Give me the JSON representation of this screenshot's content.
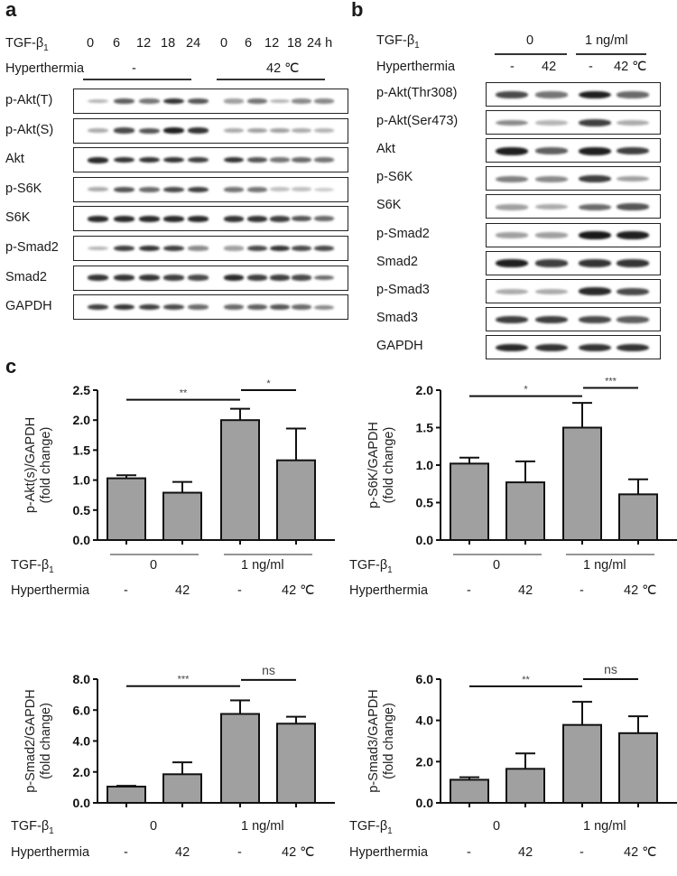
{
  "panel_a": {
    "letter": "a",
    "tgf_label": "TGF-β",
    "tgf_sub": "1",
    "timepoints_group1": [
      "0",
      "6",
      "12",
      "18",
      "24"
    ],
    "timepoints_group2": [
      "0",
      "6",
      "12",
      "18",
      "24 h"
    ],
    "hyperthermia_label": "Hyperthermia",
    "hyperthermia_group1": "-",
    "hyperthermia_group2": "42 ℃",
    "rows": [
      {
        "label": "p-Akt(T)",
        "g1": [
          0.25,
          0.65,
          0.55,
          0.85,
          0.7
        ],
        "g2": [
          0.35,
          0.55,
          0.25,
          0.45,
          0.45
        ]
      },
      {
        "label": "p-Akt(S)",
        "g1": [
          0.3,
          0.75,
          0.7,
          0.95,
          0.85
        ],
        "g2": [
          0.3,
          0.35,
          0.35,
          0.3,
          0.25
        ]
      },
      {
        "label": "Akt",
        "g1": [
          0.9,
          0.85,
          0.85,
          0.85,
          0.8
        ],
        "g2": [
          0.85,
          0.7,
          0.55,
          0.6,
          0.55
        ]
      },
      {
        "label": "p-S6K",
        "g1": [
          0.3,
          0.7,
          0.6,
          0.75,
          0.8
        ],
        "g2": [
          0.55,
          0.55,
          0.2,
          0.2,
          0.15
        ]
      },
      {
        "label": "S6K",
        "g1": [
          0.9,
          0.9,
          0.9,
          0.9,
          0.9
        ],
        "g2": [
          0.85,
          0.85,
          0.8,
          0.7,
          0.6
        ]
      },
      {
        "label": "p-Smad2",
        "g1": [
          0.25,
          0.8,
          0.85,
          0.8,
          0.45
        ],
        "g2": [
          0.35,
          0.75,
          0.85,
          0.75,
          0.75
        ]
      },
      {
        "label": "Smad2",
        "g1": [
          0.85,
          0.85,
          0.85,
          0.8,
          0.75
        ],
        "g2": [
          0.9,
          0.8,
          0.8,
          0.75,
          0.6
        ]
      },
      {
        "label": "GAPDH",
        "g1": [
          0.8,
          0.85,
          0.8,
          0.75,
          0.6
        ],
        "g2": [
          0.6,
          0.65,
          0.7,
          0.6,
          0.45
        ]
      }
    ]
  },
  "panel_b": {
    "letter": "b",
    "tgf_label": "TGF-β",
    "tgf_sub": "1",
    "tgf_groups": [
      "0",
      "1 ng/ml"
    ],
    "hyperthermia_label": "Hyperthermia",
    "hyperthermia_values": [
      "-",
      "42",
      "-",
      "42 ℃"
    ],
    "rows": [
      {
        "label": "p-Akt(Thr308)",
        "lanes": [
          0.75,
          0.55,
          0.95,
          0.6
        ]
      },
      {
        "label": "p-Akt(Ser473)",
        "lanes": [
          0.45,
          0.25,
          0.8,
          0.3
        ]
      },
      {
        "label": "Akt",
        "lanes": [
          0.95,
          0.65,
          0.95,
          0.8
        ]
      },
      {
        "label": "p-S6K",
        "lanes": [
          0.5,
          0.45,
          0.8,
          0.35
        ]
      },
      {
        "label": "S6K",
        "lanes": [
          0.35,
          0.3,
          0.6,
          0.7
        ]
      },
      {
        "label": "p-Smad2",
        "lanes": [
          0.35,
          0.35,
          0.98,
          0.95
        ]
      },
      {
        "label": "Smad2",
        "lanes": [
          0.95,
          0.8,
          0.85,
          0.85
        ]
      },
      {
        "label": "p-Smad3",
        "lanes": [
          0.3,
          0.3,
          0.9,
          0.75
        ]
      },
      {
        "label": "Smad3",
        "lanes": [
          0.8,
          0.8,
          0.75,
          0.65
        ]
      },
      {
        "label": "GAPDH",
        "lanes": [
          0.9,
          0.85,
          0.85,
          0.85
        ]
      }
    ]
  },
  "panel_c": {
    "letter": "c",
    "tgf_label": "TGF-β",
    "tgf_sub": "1",
    "tgf_groups": [
      "0",
      "1 ng/ml"
    ],
    "hyperthermia_label": "Hyperthermia",
    "hyperthermia_values": [
      "-",
      "42",
      "-",
      "42 ℃"
    ]
  },
  "chart_data": [
    {
      "type": "bar",
      "title": "",
      "ylabel": "p-Akt(s)/GAPDH (fold change)",
      "ylabel_line1": "p-Akt(s)/GAPDH",
      "ylabel_line2": "(fold change)",
      "categories": [
        "TGF-β1 0 / -",
        "TGF-β1 0 / 42",
        "TGF-β1 1 ng/ml / -",
        "TGF-β1 1 ng/ml / 42 ℃"
      ],
      "values": [
        1.03,
        0.79,
        2.0,
        1.33
      ],
      "errors": [
        0.05,
        0.18,
        0.19,
        0.53
      ],
      "ylim": [
        0,
        2.5
      ],
      "yticks": [
        "0.0",
        "0.5",
        "1.0",
        "1.5",
        "2.0",
        "2.5"
      ],
      "ytick_values": [
        0,
        0.5,
        1.0,
        1.5,
        2.0,
        2.5
      ],
      "significance": [
        {
          "from": 0,
          "to": 2,
          "label": "**",
          "y": 2.34
        },
        {
          "from": 2,
          "to": 3,
          "label": "*",
          "y": 2.5
        }
      ]
    },
    {
      "type": "bar",
      "title": "",
      "ylabel": "p-S6K/GAPDH (fold change)",
      "ylabel_line1": "p-S6K/GAPDH",
      "ylabel_line2": "(fold change)",
      "categories": [
        "TGF-β1 0 / -",
        "TGF-β1 0 / 42",
        "TGF-β1 1 ng/ml / -",
        "TGF-β1 1 ng/ml / 42 ℃"
      ],
      "values": [
        1.02,
        0.77,
        1.5,
        0.61
      ],
      "errors": [
        0.08,
        0.28,
        0.33,
        0.2
      ],
      "ylim": [
        0,
        2.0
      ],
      "yticks": [
        "0.0",
        "0.5",
        "1.0",
        "1.5",
        "2.0"
      ],
      "ytick_values": [
        0,
        0.5,
        1.0,
        1.5,
        2.0
      ],
      "significance": [
        {
          "from": 0,
          "to": 2,
          "label": "*",
          "y": 1.92
        },
        {
          "from": 2,
          "to": 3,
          "label": "***",
          "y": 2.03
        }
      ]
    },
    {
      "type": "bar",
      "title": "",
      "ylabel": "p-Smad2/GAPDH (fold change)",
      "ylabel_line1": "p-Smad2/GAPDH",
      "ylabel_line2": "(fold change)",
      "categories": [
        "TGF-β1 0 / -",
        "TGF-β1 0 / 42",
        "TGF-β1 1 ng/ml / -",
        "TGF-β1 1 ng/ml / 42 ℃"
      ],
      "values": [
        1.05,
        1.85,
        5.75,
        5.12
      ],
      "errors": [
        0.05,
        0.77,
        0.88,
        0.45
      ],
      "ylim": [
        0,
        8.0
      ],
      "yticks": [
        "0.0",
        "2.0",
        "4.0",
        "6.0",
        "8.0"
      ],
      "ytick_values": [
        0,
        2.0,
        4.0,
        6.0,
        8.0
      ],
      "significance": [
        {
          "from": 0,
          "to": 2,
          "label": "***",
          "y": 7.55
        },
        {
          "from": 2,
          "to": 3,
          "label": "ns",
          "y": 7.95
        }
      ]
    },
    {
      "type": "bar",
      "title": "",
      "ylabel": "p-Smad3/GAPDH (fold change)",
      "ylabel_line1": "p-Smad3/GAPDH",
      "ylabel_line2": "(fold change)",
      "categories": [
        "TGF-β1 0 / -",
        "TGF-β1 0 / 42",
        "TGF-β1 1 ng/ml / -",
        "TGF-β1 1 ng/ml / 42 ℃"
      ],
      "values": [
        1.12,
        1.65,
        3.78,
        3.38
      ],
      "errors": [
        0.12,
        0.75,
        1.12,
        0.82
      ],
      "ylim": [
        0,
        6.0
      ],
      "yticks": [
        "0.0",
        "2.0",
        "4.0",
        "6.0"
      ],
      "ytick_values": [
        0,
        2.0,
        4.0,
        6.0
      ],
      "significance": [
        {
          "from": 0,
          "to": 2,
          "label": "**",
          "y": 5.65
        },
        {
          "from": 2,
          "to": 3,
          "label": "ns",
          "y": 6.0
        }
      ]
    }
  ],
  "colors": {
    "bar_fill": "#a0a0a0",
    "bar_stroke": "#111111",
    "axis": "#111111",
    "text": "#1a1a1a"
  }
}
